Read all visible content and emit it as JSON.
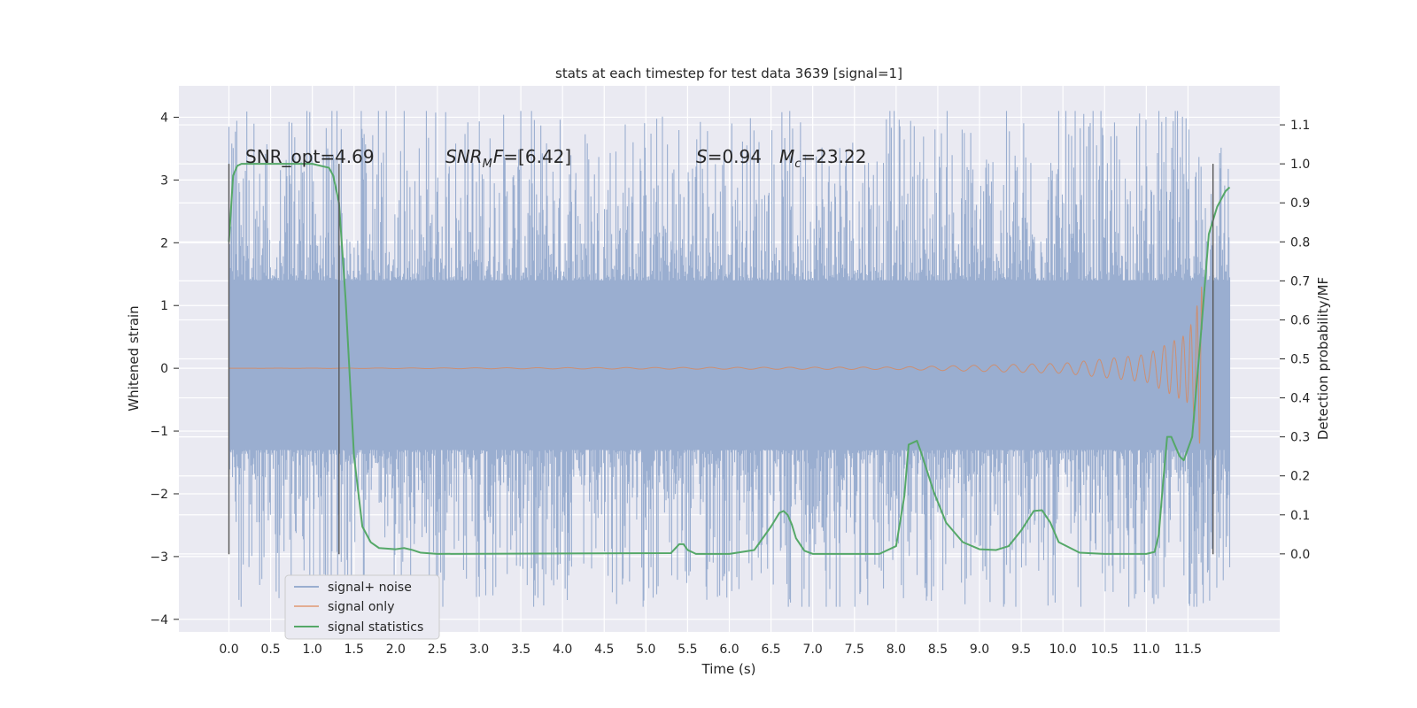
{
  "chart_data": {
    "type": "line",
    "title": "stats at each timestep for test data 3639 [signal=1]",
    "xlabel": "Time (s)",
    "ylabel_left": "Whitened strain",
    "ylabel_right": "Detection probability/MF",
    "xlim": [
      -0.6,
      12.6
    ],
    "ylim_left": [
      -4.2,
      4.5
    ],
    "ylim_right": [
      -0.2,
      1.2
    ],
    "x_ticks": [
      "0.0",
      "0.5",
      "1.0",
      "1.5",
      "2.0",
      "2.5",
      "3.0",
      "3.5",
      "4.0",
      "4.5",
      "5.0",
      "5.5",
      "6.0",
      "6.5",
      "7.0",
      "7.5",
      "8.0",
      "8.5",
      "9.0",
      "9.5",
      "10.0",
      "10.5",
      "11.0",
      "11.5"
    ],
    "y_left_ticks": [
      "−4",
      "−3",
      "−2",
      "−1",
      "0",
      "1",
      "2",
      "3",
      "4"
    ],
    "y_right_ticks": [
      "0.0",
      "0.1",
      "0.2",
      "0.3",
      "0.4",
      "0.5",
      "0.6",
      "0.7",
      "0.8",
      "0.9",
      "1.0",
      "1.1"
    ],
    "grid": true,
    "legend_position": "lower-left",
    "annotations": {
      "snr_opt": "SNR_opt=4.69",
      "snr_mf_sym": "SNR",
      "snr_mf_sub": "M",
      "snr_mf_rest": "F=[6.42]",
      "s_sym": "S",
      "s_rest": "=0.94",
      "mc_sym": "M",
      "mc_sub": "c",
      "mc_rest": "=23.22"
    },
    "colors": {
      "noise": "#9aaed0",
      "signal_only": "#dd8452",
      "statistics": "#55a868",
      "background": "#eaeaf2",
      "vlines": "#555555"
    },
    "vertical_markers": [
      0.0,
      1.32,
      11.8
    ],
    "series": [
      {
        "name": "signal+ noise",
        "style": "dense noise band",
        "t_start": 0.0,
        "t_end": 12.0,
        "typical_band": [
          -1.3,
          1.4
        ],
        "peak_range": [
          -3.8,
          4.1
        ]
      },
      {
        "name": "signal only",
        "style": "chirp",
        "t_start": 0.0,
        "t_end": 11.67,
        "envelope_points": [
          [
            0.0,
            0.0
          ],
          [
            4.0,
            0.01
          ],
          [
            8.0,
            0.02
          ],
          [
            10.0,
            0.08
          ],
          [
            11.0,
            0.22
          ],
          [
            11.5,
            0.55
          ],
          [
            11.62,
            1.05
          ],
          [
            11.65,
            1.3
          ]
        ]
      },
      {
        "name": "signal statistics",
        "style": "line",
        "axis": "right",
        "x": [
          0.0,
          0.05,
          0.1,
          0.15,
          0.2,
          0.3,
          0.5,
          1.0,
          1.1,
          1.2,
          1.25,
          1.32,
          1.4,
          1.45,
          1.5,
          1.6,
          1.7,
          1.8,
          2.0,
          2.1,
          2.2,
          2.3,
          2.5,
          5.3,
          5.4,
          5.45,
          5.5,
          5.6,
          6.0,
          6.3,
          6.5,
          6.6,
          6.65,
          6.7,
          6.75,
          6.8,
          6.9,
          7.0,
          7.2,
          7.5,
          7.8,
          8.0,
          8.1,
          8.15,
          8.25,
          8.3,
          8.45,
          8.6,
          8.8,
          9.0,
          9.2,
          9.35,
          9.5,
          9.65,
          9.75,
          9.85,
          9.95,
          10.2,
          10.5,
          11.0,
          11.1,
          11.15,
          11.2,
          11.25,
          11.3,
          11.4,
          11.45,
          11.55,
          11.65,
          11.75,
          11.85,
          11.9,
          11.95,
          12.0
        ],
        "values": [
          0.8,
          0.97,
          0.995,
          1.0,
          1.0,
          1.0,
          1.0,
          1.0,
          0.995,
          0.99,
          0.97,
          0.9,
          0.65,
          0.45,
          0.25,
          0.07,
          0.03,
          0.015,
          0.012,
          0.015,
          0.01,
          0.003,
          0.0,
          0.002,
          0.025,
          0.025,
          0.01,
          0.0,
          0.0,
          0.01,
          0.07,
          0.105,
          0.11,
          0.1,
          0.075,
          0.04,
          0.008,
          0.0,
          0.0,
          0.0,
          0.0,
          0.02,
          0.15,
          0.28,
          0.29,
          0.26,
          0.16,
          0.08,
          0.03,
          0.012,
          0.01,
          0.02,
          0.06,
          0.11,
          0.112,
          0.08,
          0.03,
          0.003,
          0.0,
          0.0,
          0.005,
          0.05,
          0.18,
          0.3,
          0.3,
          0.25,
          0.24,
          0.3,
          0.55,
          0.82,
          0.89,
          0.91,
          0.93,
          0.94
        ]
      }
    ]
  }
}
